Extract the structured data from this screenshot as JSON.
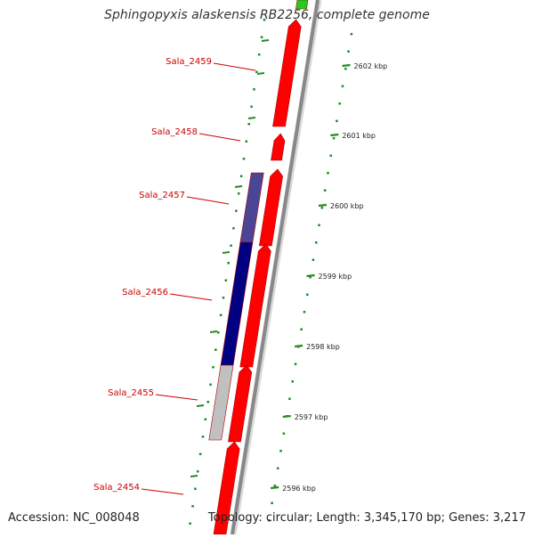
{
  "title": "Sphingopyxis alaskensis RB2256, complete genome",
  "footer": {
    "accession": "Accession: NC_008048",
    "summary": "Topology: circular; Length: 3,345,170 bp; Genes: 3,217"
  },
  "colors": {
    "gene_red": "#ff0000",
    "gene_green": "#22cc22",
    "backbone_gray": "#888888",
    "label_red": "#cc0000",
    "tick_green": "#228B22",
    "navy": "#000080",
    "slate_blue": "#4b4596",
    "light_gray": "#c0c0c0"
  },
  "genes": [
    {
      "label": "Sala_2459"
    },
    {
      "label": "Sala_2458"
    },
    {
      "label": "Sala_2457"
    },
    {
      "label": "Sala_2456"
    },
    {
      "label": "Sala_2455"
    },
    {
      "label": "Sala_2454"
    }
  ],
  "ticks": [
    {
      "label": "2602 kbp"
    },
    {
      "label": "2601 kbp"
    },
    {
      "label": "2600 kbp"
    },
    {
      "label": "2599 kbp"
    },
    {
      "label": "2598 kbp"
    },
    {
      "label": "2597 kbp"
    },
    {
      "label": "2596 kbp"
    }
  ]
}
